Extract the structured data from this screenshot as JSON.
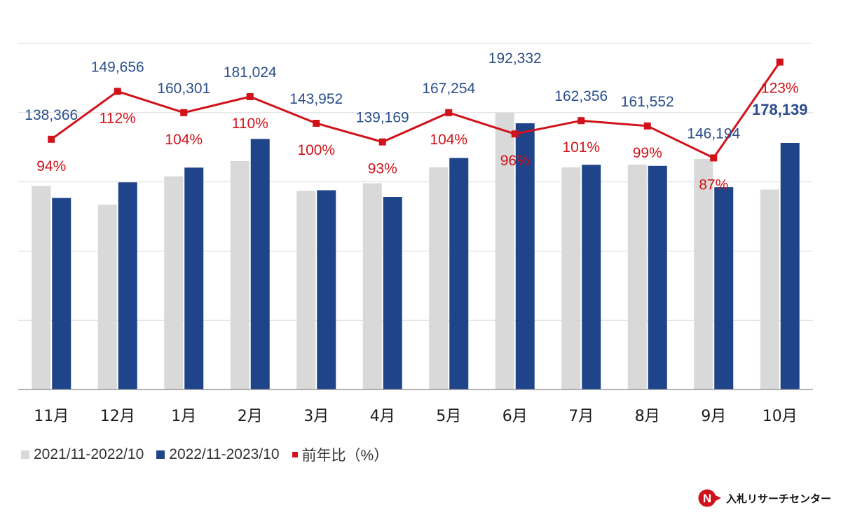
{
  "chart_data": {
    "type": "bar+line",
    "categories": [
      "11月",
      "12月",
      "1月",
      "2月",
      "3月",
      "4月",
      "5月",
      "6月",
      "7月",
      "8月",
      "9月",
      "10月"
    ],
    "series": [
      {
        "name": "2021/11-2022/10",
        "kind": "bar",
        "color": "#d9d9d9",
        "values": [
          147000,
          133500,
          154000,
          165000,
          143500,
          149000,
          160500,
          200000,
          160500,
          162500,
          166500,
          144500
        ]
      },
      {
        "name": "2022/11-2023/10",
        "kind": "bar",
        "color": "#1f4489",
        "values": [
          138366,
          149656,
          160301,
          181024,
          143952,
          139169,
          167254,
          192332,
          162356,
          161552,
          146194,
          178139
        ]
      },
      {
        "name": "前年比（%）",
        "kind": "line",
        "color": "#d0121a",
        "values": [
          94,
          112,
          104,
          110,
          100,
          93,
          104,
          96,
          101,
          99,
          87,
          123
        ]
      }
    ],
    "value_labels": [
      "138,366",
      "149,656",
      "160,301",
      "181,024",
      "143,952",
      "139,169",
      "167,254",
      "192,332",
      "162,356",
      "161,552",
      "146,194",
      "178,139"
    ],
    "pct_labels": [
      "94%",
      "112%",
      "104%",
      "110%",
      "100%",
      "93%",
      "104%",
      "96%",
      "101%",
      "99%",
      "87%",
      "123%"
    ],
    "highlight_index": 11,
    "ylim": [
      0,
      250000
    ],
    "ratio_ylim": [
      0,
      130
    ],
    "gridlines": true,
    "legend_position": "bottom-left"
  },
  "legend": [
    {
      "label": "2021/11-2022/10",
      "color": "#d9d9d9"
    },
    {
      "label": "2022/11-2023/10",
      "color": "#1f4489"
    },
    {
      "label": "前年比（%）",
      "color": "#d0121a"
    }
  ],
  "logo": {
    "text": "入札リサーチセンター"
  }
}
